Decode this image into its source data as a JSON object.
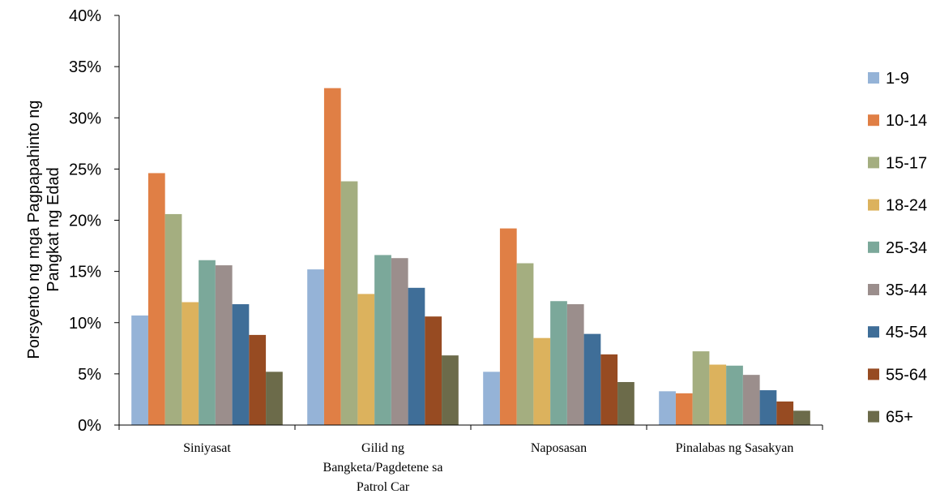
{
  "chart_data": {
    "type": "bar",
    "ylabel_lines": [
      "Porsyento ng mga Pagpapahinto ng",
      "Pangkat ng Edad"
    ],
    "ylim": [
      0,
      40
    ],
    "ytick_values": [
      0,
      5,
      10,
      15,
      20,
      25,
      30,
      35,
      40
    ],
    "ytick_labels": [
      "0%",
      "5%",
      "10%",
      "15%",
      "20%",
      "25%",
      "30%",
      "35%",
      "40%"
    ],
    "categories": [
      {
        "name": "Siniyasat",
        "lines": [
          "Siniyasat"
        ]
      },
      {
        "name": "Gilid ng Bangketa/Pagdetene sa Patrol Car",
        "lines": [
          "Gilid ng",
          "Bangketa/Pagdetene sa",
          "Patrol Car"
        ]
      },
      {
        "name": "Naposasan",
        "lines": [
          "Naposasan"
        ]
      },
      {
        "name": "Pinalabas ng Sasakyan",
        "lines": [
          "Pinalabas ng Sasakyan"
        ]
      }
    ],
    "series": [
      {
        "name": "1-9",
        "color": "#95B3D7",
        "values": [
          10.7,
          15.2,
          5.2,
          3.3
        ]
      },
      {
        "name": "10-14",
        "color": "#E07F45",
        "values": [
          24.6,
          32.9,
          19.2,
          3.1
        ]
      },
      {
        "name": "15-17",
        "color": "#A4AE80",
        "values": [
          20.6,
          23.8,
          15.8,
          7.2
        ]
      },
      {
        "name": "18-24",
        "color": "#DCB25D",
        "values": [
          12.0,
          12.8,
          8.5,
          5.9
        ]
      },
      {
        "name": "25-34",
        "color": "#7BA89A",
        "values": [
          16.1,
          16.6,
          12.1,
          5.8
        ]
      },
      {
        "name": "35-44",
        "color": "#9B8E8C",
        "values": [
          15.6,
          16.3,
          11.8,
          4.9
        ]
      },
      {
        "name": "45-54",
        "color": "#3F6E98",
        "values": [
          11.8,
          13.4,
          8.9,
          3.4
        ]
      },
      {
        "name": "55-64",
        "color": "#974B22",
        "values": [
          8.8,
          10.6,
          6.9,
          2.3
        ]
      },
      {
        "name": "65+",
        "color": "#6C6B4A",
        "values": [
          5.2,
          6.8,
          4.2,
          1.4
        ]
      }
    ],
    "grid": false,
    "legend_position": "right"
  }
}
